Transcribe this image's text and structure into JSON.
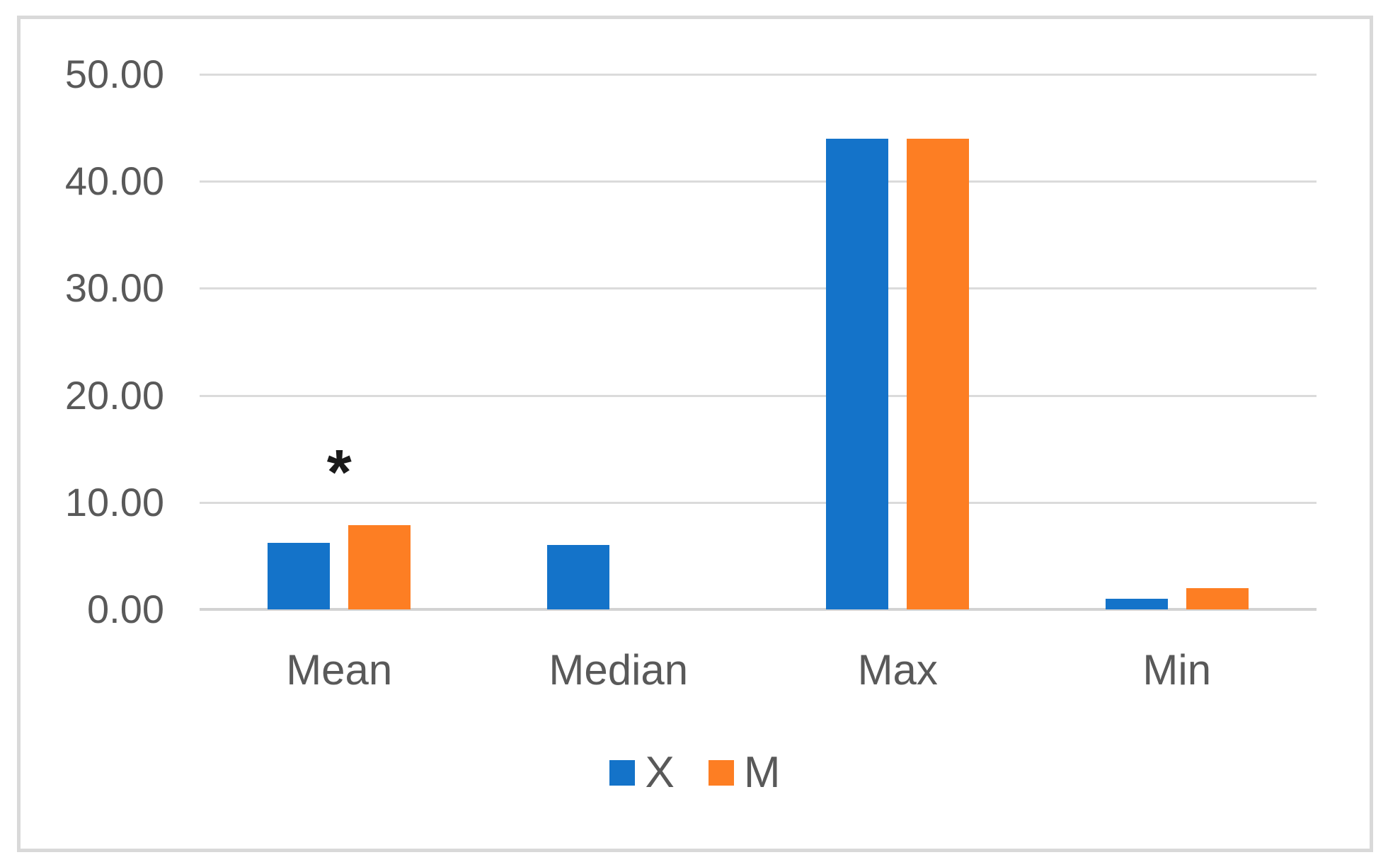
{
  "frame": {
    "border_color": "#D9D9D9",
    "background_color": "#FFFFFF"
  },
  "chart_data": {
    "type": "bar",
    "title": "",
    "xlabel": "",
    "ylabel": "",
    "categories": [
      "Mean",
      "Median",
      "Max",
      "Min"
    ],
    "series": [
      {
        "name": "X",
        "color": "#1473C9",
        "values": [
          6.2,
          6.0,
          44.0,
          1.0
        ]
      },
      {
        "name": "M",
        "color": "#FD7E23",
        "values": [
          7.9,
          0.0,
          44.0,
          2.0
        ]
      }
    ],
    "y_axis": {
      "min": 0,
      "max": 50,
      "step": 10,
      "tick_labels": [
        "0.00",
        "10.00",
        "20.00",
        "30.00",
        "40.00",
        "50.00"
      ]
    },
    "grid": true,
    "gridline_color": "#DBDBDB",
    "axis_line_color": "#D2D2D2",
    "text_color": "#595959",
    "legend": {
      "position": "bottom",
      "entries": [
        {
          "label": "X",
          "color": "#1473C9"
        },
        {
          "label": "M",
          "color": "#FD7E23"
        }
      ]
    },
    "annotations": [
      {
        "text": "*",
        "category": "Mean",
        "y_value": 14.3
      }
    ]
  }
}
